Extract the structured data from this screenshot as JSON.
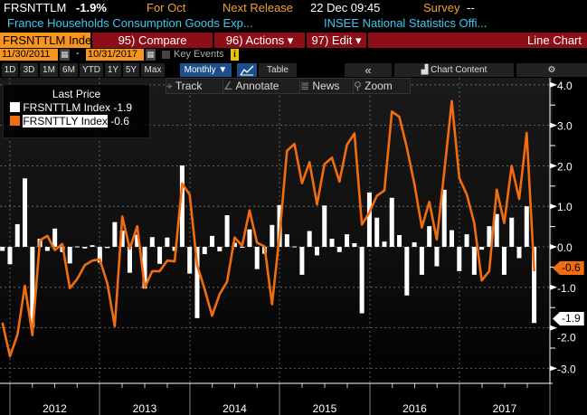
{
  "header": {
    "ticker": "FRSNTTLM",
    "change": "-1.9%",
    "period": "For Oct",
    "next_release_label": "Next Release",
    "next_release_value": "22 Dec 09:45",
    "survey_label": "Survey",
    "survey_value": "--",
    "description": "France Households Consumption Goods Exp...",
    "source": "INSEE National Statistics Offi..."
  },
  "toolbar": {
    "security": "FRSNTTLM Index",
    "compare": "95) Compare",
    "actions": "96) Actions",
    "edit": "97) Edit",
    "chart_type": "Line Chart",
    "dropdown_glyph": "▾"
  },
  "dates": {
    "start": "11/30/2011",
    "separator": "-",
    "end": "10/31/2017",
    "key_events": "Key Events",
    "info": "i"
  },
  "periods": [
    "1D",
    "3D",
    "1M",
    "6M",
    "YTD",
    "1Y",
    "5Y",
    "Max"
  ],
  "frequency": "Monthly ▼",
  "table_label": "Table",
  "collapse": "«",
  "chart_content": "Chart Content",
  "tools": {
    "track": "Track",
    "annotate": "Annotate",
    "news": "News",
    "zoom": "Zoom"
  },
  "colors": {
    "orange": "#f26d0f",
    "bar": "#ffffff",
    "red": "#8c0f18",
    "accent": "#f7941d"
  },
  "chart_data": {
    "type": "bar+line",
    "title": "Last Price",
    "start": "2011-11",
    "frequency": "monthly",
    "xlabels": [
      "2012",
      "2013",
      "2014",
      "2015",
      "2016",
      "2017"
    ],
    "yticks": [
      "4.0",
      "3.0",
      "2.0",
      "1.0",
      "0.0",
      "-1.0",
      "-2.0",
      "-3.0"
    ],
    "ylim": [
      -3.2,
      4.0
    ],
    "series": [
      {
        "name": "FRSNTTLM Index",
        "type": "bar",
        "last": "-1.9",
        "values": [
          -0.1,
          -0.43,
          0.56,
          1.69,
          -1.99,
          0.2,
          -0.1,
          0.45,
          -0.13,
          -0.41,
          0.01,
          -0.04,
          0.04,
          -0.39,
          -0.03,
          0.61,
          0.4,
          -0.64,
          0.3,
          -1.03,
          0.24,
          -0.42,
          0.23,
          -0.1,
          2.01,
          -0.66,
          -1.76,
          -0.18,
          0.27,
          -0.11,
          0.78,
          0.1,
          0.0,
          0.43,
          -0.55,
          -0.17,
          0.54,
          1.03,
          0.31,
          0.01,
          -0.69,
          0.39,
          -0.21,
          1.02,
          0.2,
          -0.13,
          0.31,
          0.09,
          -1.64,
          1.34,
          0.72,
          0.13,
          1.21,
          0.29,
          -1.2,
          0.11,
          -0.69,
          0.51,
          -0.48,
          1.41,
          0.41,
          -0.6,
          0.31,
          -0.69,
          -0.07,
          0.51,
          0.81,
          -0.69,
          0.72,
          -0.28,
          1.0,
          -1.88
        ]
      },
      {
        "name": "FRSNTTLY Index",
        "type": "line",
        "last": "-0.6",
        "values": [
          -1.87,
          -2.7,
          -2.17,
          -0.96,
          -2.18,
          0.16,
          0.27,
          -0.08,
          0.07,
          -1.02,
          -0.79,
          -0.45,
          -0.34,
          -0.31,
          -0.9,
          -1.96,
          0.75,
          -0.05,
          0.51,
          -1.01,
          -0.6,
          -0.6,
          -0.34,
          -0.36,
          1.56,
          1.29,
          -0.45,
          -1.05,
          -1.7,
          -1.17,
          -0.86,
          0.23,
          0.03,
          0.9,
          0.1,
          0.01,
          -1.42,
          0.29,
          2.37,
          2.54,
          1.57,
          2.09,
          1.05,
          2.04,
          2.2,
          1.61,
          2.52,
          2.8,
          0.55,
          0.85,
          1.26,
          1.39,
          3.34,
          3.21,
          2.45,
          1.56,
          0.48,
          1.11,
          0.18,
          1.85,
          3.6,
          1.7,
          1.29,
          0.59,
          -0.83,
          -0.6,
          1.41,
          0.59,
          2.0,
          1.18,
          2.81,
          -0.6
        ]
      }
    ]
  }
}
